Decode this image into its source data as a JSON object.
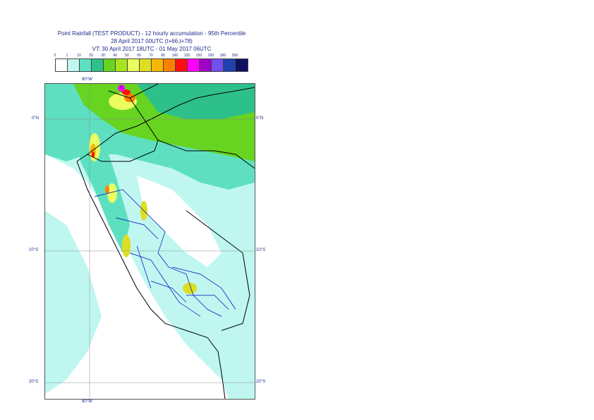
{
  "title": {
    "line1": "Point Rainfall (TEST PRODUCT) - 12 hourly accumulation - 95th Percentile",
    "line2": "28 April 2017 00UTC (t+66,t+78)",
    "line3": "VT: 30 April 2017 18UTC - 01 May 2017 06UTC"
  },
  "legend": {
    "ticks": [
      "0",
      "1",
      "10",
      "20",
      "30",
      "40",
      "50",
      "60",
      "70",
      "80",
      "100",
      "125",
      "150",
      "200",
      "300",
      "500"
    ],
    "colors": [
      "#ffffff",
      "#bff7f0",
      "#5ee0c0",
      "#2ec08a",
      "#66d420",
      "#a8e420",
      "#eafe60",
      "#dede20",
      "#f5b800",
      "#ff8000",
      "#ff1010",
      "#ff00ff",
      "#a000c8",
      "#7050f0",
      "#2040b0",
      "#101060"
    ]
  },
  "axes": {
    "lon_top": "80°W",
    "lon_bottom": "80°W",
    "lat_labels": [
      "0°N",
      "10°S",
      "20°S"
    ]
  }
}
